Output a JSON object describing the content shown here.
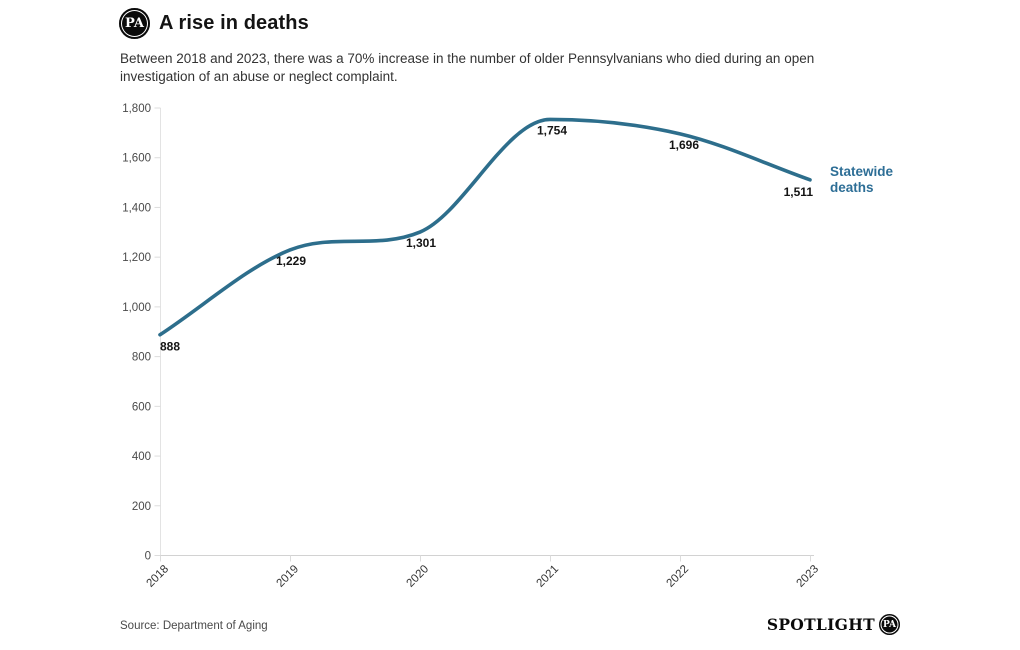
{
  "header": {
    "logo_text": "PA",
    "title": "A rise in deaths",
    "description": "Between 2018 and 2023, there was a 70% increase in the number of older Pennsylvanians who died during an open investigation of an abuse or neglect complaint."
  },
  "chart_data": {
    "type": "line",
    "title": "A rise in deaths",
    "x": [
      2018,
      2019,
      2020,
      2021,
      2022,
      2023
    ],
    "x_tick_labels": [
      "2018",
      "2019",
      "2020",
      "2021",
      "2022",
      "2023"
    ],
    "series": [
      {
        "name": "Statewide deaths",
        "values": [
          888,
          1229,
          1301,
          1754,
          1696,
          1511
        ]
      }
    ],
    "data_labels": [
      "888",
      "1,229",
      "1,301",
      "1,754",
      "1,696",
      "1,511"
    ],
    "y_ticks": [
      0,
      200,
      400,
      600,
      800,
      1000,
      1200,
      1400,
      1600,
      1800
    ],
    "y_tick_labels": [
      "0",
      "200",
      "400",
      "600",
      "800",
      "1,000",
      "1,200",
      "1,400",
      "1,600",
      "1,800"
    ],
    "ylim": [
      0,
      1800
    ],
    "grid": false,
    "legend_position": "right-annotation",
    "line_color": "#2d6e8c",
    "annotation": {
      "line1": "Statewide",
      "line2": "deaths",
      "color": "#2d6e96"
    }
  },
  "footer": {
    "source": "Source: Department of Aging",
    "brand": {
      "wordmark": "SPOTLIGHT",
      "ball": "PA"
    }
  }
}
